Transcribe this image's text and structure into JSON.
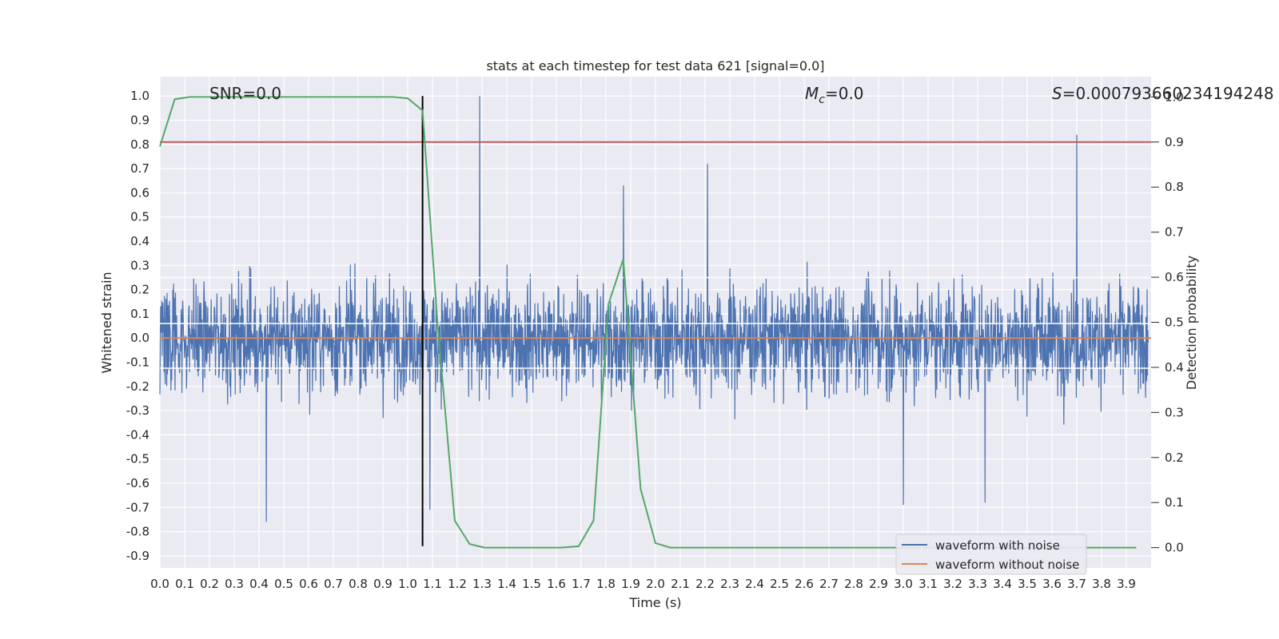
{
  "chart_data": {
    "type": "line",
    "title": "stats at each timestep for test data 621 [signal=0.0]",
    "xlabel": "Time (s)",
    "ylabel_left": "Whitened strain",
    "ylabel_right": "Detection probability",
    "xlim": [
      0.0,
      4.0
    ],
    "ylim_left": [
      -0.95,
      1.08
    ],
    "ylim_right": [
      -0.045,
      1.045
    ],
    "x_ticks": [
      "0.0",
      "0.1",
      "0.2",
      "0.3",
      "0.4",
      "0.5",
      "0.6",
      "0.7",
      "0.8",
      "0.9",
      "1.0",
      "1.1",
      "1.2",
      "1.3",
      "1.4",
      "1.5",
      "1.6",
      "1.7",
      "1.8",
      "1.9",
      "2.0",
      "2.1",
      "2.2",
      "2.3",
      "2.4",
      "2.5",
      "2.6",
      "2.7",
      "2.8",
      "2.9",
      "3.0",
      "3.1",
      "3.2",
      "3.3",
      "3.4",
      "3.5",
      "3.6",
      "3.7",
      "3.8",
      "3.9"
    ],
    "y_ticks_left": [
      "1.0",
      "0.9",
      "0.8",
      "0.7",
      "0.6",
      "0.5",
      "0.4",
      "0.3",
      "0.2",
      "0.1",
      "0.0",
      "-0.1",
      "-0.2",
      "-0.3",
      "-0.4",
      "-0.5",
      "-0.6",
      "-0.7",
      "-0.8",
      "-0.9"
    ],
    "y_ticks_right": [
      "1.0",
      "0.9",
      "0.8",
      "0.7",
      "0.6",
      "0.5",
      "0.4",
      "0.3",
      "0.2",
      "0.1",
      "0.0"
    ],
    "annotations": {
      "snr": "SNR=0.0",
      "mc_symbol": "M",
      "mc_sub": "c",
      "mc_value": "=0.0",
      "s_symbol": "S",
      "s_value": "=0.000793660234194248"
    },
    "grid": true,
    "legend_position": "lower-right",
    "series": [
      {
        "name": "waveform with noise",
        "color": "#4c72b0",
        "axis": "left",
        "description_note": "dense noise trace sampled over 0.0–4.0 s; extrema include 1.0 at ~1.29 s, 0.84 at ~3.70 s, -0.76 at ~0.43 s, -0.71 at ~1.09 s, -0.69 at ~3.00 s"
      },
      {
        "name": "waveform without noise",
        "color": "#dd8452",
        "axis": "left",
        "x": [
          0.0,
          4.0
        ],
        "y": [
          0.0,
          0.0
        ]
      },
      {
        "name": "detection probability",
        "color": "#55a868",
        "axis": "right",
        "x": [
          0.0,
          0.06,
          0.12,
          0.19,
          0.25,
          0.31,
          0.37,
          0.44,
          0.5,
          0.56,
          0.62,
          0.69,
          0.75,
          0.81,
          0.87,
          0.94,
          1.0,
          1.06,
          1.12,
          1.19,
          1.25,
          1.31,
          1.37,
          1.44,
          1.5,
          1.56,
          1.62,
          1.69,
          1.75,
          1.81,
          1.87,
          1.94,
          2.0,
          2.06,
          2.12,
          2.5,
          3.0,
          3.5,
          3.94
        ],
        "y": [
          0.89,
          0.995,
          1.0,
          1.0,
          1.0,
          1.0,
          1.0,
          1.0,
          1.0,
          1.0,
          1.0,
          1.0,
          1.0,
          1.0,
          1.0,
          1.0,
          0.997,
          0.97,
          0.5,
          0.06,
          0.008,
          0.0,
          0.0,
          0.0,
          0.0,
          0.0,
          0.0,
          0.003,
          0.06,
          0.54,
          0.64,
          0.13,
          0.01,
          0.0,
          0.0,
          0.0,
          0.0,
          0.0,
          0.0
        ]
      }
    ],
    "threshold_line": {
      "axis": "right",
      "value": 0.9,
      "color": "#c44e52"
    },
    "event_marker": {
      "x": 1.06,
      "y_range": [
        -0.86,
        1.0
      ],
      "color": "#000000"
    },
    "extra_hlines_left": [
      0.25,
      0.06,
      -0.125
    ]
  }
}
